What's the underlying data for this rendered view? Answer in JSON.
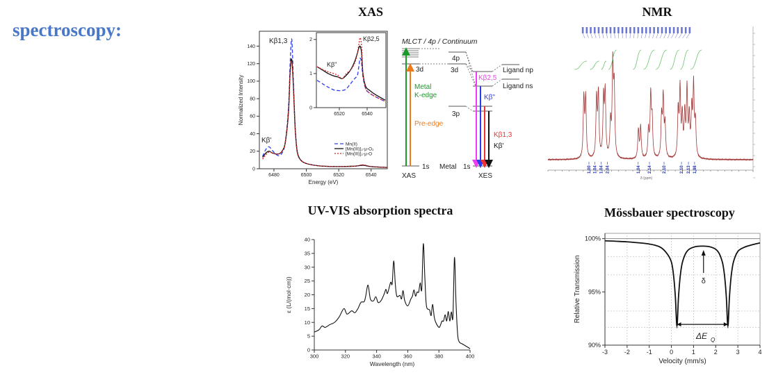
{
  "slide": {
    "heading": "spectroscopy:",
    "heading_color": "#4a78c8"
  },
  "titles": {
    "xas": "XAS",
    "nmr": "NMR",
    "uvvis": "UV-VIS absorption spectra",
    "mossbauer": "Mössbauer spectroscopy"
  },
  "chart_data": [
    {
      "id": "xas-main",
      "type": "line",
      "xlabel": "Energy (eV)",
      "ylabel": "Normalized Intensity",
      "xlim": [
        6471,
        6550
      ],
      "ylim": [
        0,
        157
      ],
      "xticks": [
        "6480",
        "6500",
        "6520",
        "6540"
      ],
      "yticks": [
        "0",
        "20",
        "40",
        "60",
        "80",
        "100",
        "120",
        "140"
      ],
      "annotations": {
        "kb13": "Kβ1,3",
        "kbprime": "Kβ'"
      },
      "legend_position": "bottom-right",
      "x": [
        6473,
        6475,
        6477,
        6479,
        6481,
        6483,
        6485,
        6487,
        6489,
        6490,
        6491,
        6492,
        6493,
        6494,
        6495,
        6497,
        6500,
        6505,
        6510,
        6520,
        6530,
        6535,
        6540,
        6550
      ],
      "series": [
        {
          "name": "Mn(II)",
          "color": "#2b3cf0",
          "dash": "dashed",
          "values": [
            14,
            22,
            25,
            21,
            17,
            15,
            18,
            30,
            70,
            120,
            148,
            100,
            50,
            25,
            15,
            9,
            6,
            4,
            3,
            2.5,
            3,
            4,
            2.5,
            1.5
          ]
        },
        {
          "name": "[Mn(III)]₂-μ-O₂",
          "color": "#111111",
          "dash": "solid",
          "values": [
            13,
            18,
            20,
            18,
            17,
            17,
            20,
            30,
            65,
            110,
            125,
            95,
            50,
            25,
            15,
            9,
            6,
            4,
            3,
            2.5,
            3,
            4,
            2.5,
            1.5
          ]
        },
        {
          "name": "[Mn(III)]₂-μ-O",
          "color": "#e02020",
          "dash": "dotted",
          "values": [
            11,
            16,
            19,
            18,
            17,
            17,
            20,
            30,
            65,
            110,
            122,
            92,
            48,
            24,
            14,
            9,
            6,
            4,
            3,
            2.5,
            3,
            4.5,
            2.5,
            1.5
          ]
        }
      ]
    },
    {
      "id": "xas-inset",
      "type": "line",
      "xlim": [
        6503.5,
        6553.5
      ],
      "ylim": [
        0,
        2.2
      ],
      "xticks": [
        "6520",
        "6540"
      ],
      "yticks": [
        "0",
        "1",
        "2"
      ],
      "annotations": {
        "kb25": "Kβ2,5",
        "kbdoubleprime": "Kβ\""
      },
      "x": [
        6504,
        6508,
        6512,
        6516,
        6519,
        6522,
        6525,
        6528,
        6531,
        6533,
        6534,
        6535,
        6536,
        6537,
        6539,
        6542,
        6546,
        6553
      ],
      "series": [
        {
          "name": "Mn(II)",
          "color": "#2b3cf0",
          "dash": "dashed",
          "values": [
            0.8,
            0.7,
            0.6,
            0.52,
            0.5,
            0.5,
            0.55,
            0.7,
            0.85,
            0.95,
            1.2,
            1.45,
            1.3,
            0.9,
            0.55,
            0.42,
            0.32,
            0.18
          ]
        },
        {
          "name": "[Mn(III)]₂-μ-O₂",
          "color": "#111111",
          "dash": "solid",
          "values": [
            1.2,
            1.1,
            1.0,
            0.93,
            0.9,
            0.85,
            0.95,
            1.1,
            1.35,
            1.6,
            1.75,
            1.8,
            1.6,
            1.0,
            0.62,
            0.5,
            0.38,
            0.22
          ]
        },
        {
          "name": "[Mn(III)]₂-μ-O",
          "color": "#e02020",
          "dash": "dotted",
          "values": [
            1.2,
            1.12,
            1.05,
            1.0,
            0.95,
            0.85,
            1.0,
            1.1,
            1.3,
            1.6,
            1.85,
            2.05,
            1.8,
            1.0,
            0.55,
            0.42,
            0.32,
            0.18
          ]
        }
      ]
    },
    {
      "id": "nmr",
      "type": "line",
      "xlabel": "δ (ppm)",
      "color": "#a33a3a",
      "integration_color": "#6cc46c",
      "label_color": "#1f2fa8",
      "peaks_note": "peak positions as percent along the ppm axis (tick labels illegible)",
      "peaks": [
        {
          "x": 17.5,
          "h": 0.66
        },
        {
          "x": 18.4,
          "h": 0.66
        },
        {
          "x": 23.7,
          "h": 0.65
        },
        {
          "x": 24.6,
          "h": 0.7
        },
        {
          "x": 27.1,
          "h": 0.65
        },
        {
          "x": 27.9,
          "h": 0.7
        },
        {
          "x": 30.5,
          "h": 0.38
        },
        {
          "x": 31.6,
          "h": 1.0
        },
        {
          "x": 32.3,
          "h": 0.73
        },
        {
          "x": 44.1,
          "h": 0.32
        },
        {
          "x": 45.2,
          "h": 0.35
        },
        {
          "x": 49.0,
          "h": 0.31
        },
        {
          "x": 50.1,
          "h": 0.68
        },
        {
          "x": 50.8,
          "h": 0.4
        },
        {
          "x": 55.4,
          "h": 0.44
        },
        {
          "x": 56.2,
          "h": 0.65
        },
        {
          "x": 57.1,
          "h": 0.36
        },
        {
          "x": 63.5,
          "h": 0.51
        },
        {
          "x": 64.4,
          "h": 0.74
        },
        {
          "x": 65.5,
          "h": 0.45
        },
        {
          "x": 66.7,
          "h": 0.47
        },
        {
          "x": 67.8,
          "h": 0.74
        },
        {
          "x": 68.9,
          "h": 0.44
        },
        {
          "x": 70.1,
          "h": 0.51
        },
        {
          "x": 71.0,
          "h": 0.78
        },
        {
          "x": 71.9,
          "h": 0.38
        }
      ],
      "integrals": [
        "1.00",
        "1.04",
        "1.04",
        "2.04",
        "1.04",
        "2.14",
        "2.10",
        "2.10",
        "2.13",
        "1.98"
      ]
    },
    {
      "id": "uvvis",
      "type": "line",
      "xlabel": "Wavelength (nm)",
      "ylabel": "ε (L/(mol·cm))",
      "xlim": [
        300,
        400
      ],
      "ylim": [
        0,
        40
      ],
      "xticks": [
        "300",
        "320",
        "340",
        "360",
        "380",
        "400"
      ],
      "yticks": [
        "0",
        "5",
        "10",
        "15",
        "20",
        "25",
        "30",
        "35",
        "40"
      ],
      "x": [
        300,
        303,
        305,
        307,
        310,
        313,
        316,
        319,
        321,
        324,
        326,
        328,
        330,
        332,
        333,
        334.5,
        336,
        338,
        339.5,
        341,
        343,
        345,
        346,
        347,
        349,
        350,
        351,
        352,
        353,
        355,
        356,
        357,
        358,
        360,
        362,
        363,
        364,
        365,
        366,
        367,
        368,
        369,
        370,
        371,
        372,
        374,
        375,
        376,
        377,
        378,
        380,
        381,
        382,
        383,
        384,
        385,
        386,
        387,
        388,
        389,
        390,
        391,
        392,
        393,
        395,
        398,
        400
      ],
      "series": [
        {
          "color": "#111111",
          "values": [
            6.5,
            7.3,
            8.7,
            8.2,
            9.2,
            10,
            12,
            15,
            13,
            14.2,
            13.5,
            15,
            17.3,
            17.5,
            19.5,
            23.5,
            18.5,
            17.8,
            19.3,
            17.2,
            18,
            20.5,
            22,
            20.5,
            24.5,
            24,
            32.3,
            24,
            19.5,
            19.8,
            18.5,
            21.5,
            18,
            16,
            18.5,
            19.5,
            21.8,
            19.5,
            21,
            21,
            24.3,
            22,
            38.5,
            26,
            16,
            14.5,
            12.5,
            16.5,
            12,
            10,
            8.2,
            9,
            10.5,
            10.5,
            12.8,
            10.5,
            14,
            10.5,
            13.8,
            12,
            33.5,
            17,
            6,
            3,
            2.2,
            1.2,
            0.5
          ]
        }
      ]
    },
    {
      "id": "mossbauer",
      "type": "line",
      "xlabel": "Velocity (mm/s)",
      "ylabel": "Relative Transmission",
      "xlim": [
        -3,
        4
      ],
      "ylim": [
        90,
        100.5
      ],
      "xticks": [
        "-3",
        "-2",
        "-1",
        "0",
        "1",
        "2",
        "3",
        "4"
      ],
      "yticks": [
        "90%",
        "95%",
        "100%"
      ],
      "grid": true,
      "annotations": {
        "delta": "δ",
        "quad_split": "ΔE",
        "quad_split_sub": "Q"
      },
      "x": [
        -3,
        -2,
        -1,
        -0.5,
        -0.2,
        0,
        0.1,
        0.18,
        0.25,
        0.32,
        0.4,
        0.5,
        0.7,
        1,
        1.4,
        1.8,
        2.1,
        2.3,
        2.4,
        2.48,
        2.55,
        2.62,
        2.7,
        2.8,
        3,
        3.3,
        3.6,
        4
      ],
      "series": [
        {
          "color": "#111111",
          "values": [
            99.8,
            99.7,
            99.5,
            99.2,
            98.6,
            97.8,
            96.5,
            94.5,
            91.8,
            94.5,
            96.5,
            97.8,
            98.8,
            99.2,
            99.3,
            99.2,
            98.8,
            97.8,
            96.5,
            94.5,
            91.8,
            94.5,
            96.5,
            97.8,
            98.8,
            99.2,
            99.4,
            99.6
          ]
        }
      ]
    }
  ],
  "energy_diagram": {
    "header": "MLCT / 4p / Continuum",
    "levels": {
      "d3_left": "3d",
      "p4": "4p",
      "d3_right": "3d",
      "p3": "3p",
      "s1_left": "1s",
      "metal": "Metal",
      "s1_right": "1s",
      "ligand_np": "Ligand np",
      "ligand_ns": "Ligand ns"
    },
    "labels": {
      "xas": "XAS",
      "xes": "XES",
      "metal_k_edge_1": "Metal",
      "metal_k_edge_2": "K-edge",
      "pre_edge": "Pre-edge",
      "kb25": "Kβ2,5",
      "kbdp": "Kβ\"",
      "kb13": "Kβ1,3",
      "kbp": "Kβ'"
    },
    "colors": {
      "green": "#1a9a2a",
      "orange": "#f07a1a",
      "magenta": "#f03cf0",
      "blue": "#2a3cf0",
      "red": "#f03030",
      "black": "#111111"
    }
  }
}
